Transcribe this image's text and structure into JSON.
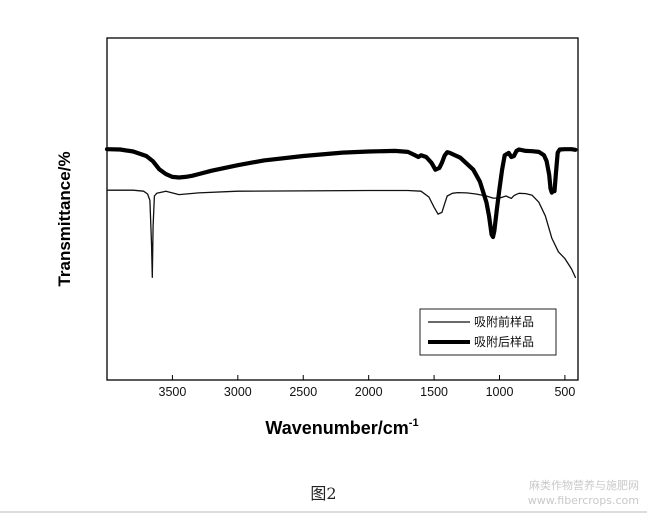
{
  "chart_data": {
    "type": "line",
    "title": "",
    "xlabel": "Wavenumber/cm",
    "xlabel_superscript": "-1",
    "ylabel": "Transmittance/%",
    "xlim": [
      4000,
      400
    ],
    "x_reversed": true,
    "y_ticks_shown": false,
    "grid": false,
    "x_ticks": [
      "3500",
      "3000",
      "2500",
      "2000",
      "1500",
      "1000",
      "500"
    ],
    "legend_position": "bottom-right",
    "series": [
      {
        "name": "吸附前样品",
        "line": "thin",
        "color": "#111111",
        "x": [
          4000,
          3800,
          3720,
          3690,
          3672,
          3660,
          3654,
          3648,
          3638,
          3620,
          3550,
          3450,
          3300,
          3000,
          2500,
          2000,
          1700,
          1600,
          1540,
          1500,
          1470,
          1440,
          1420,
          1400,
          1360,
          1320,
          1250,
          1180,
          1100,
          1050,
          1000,
          950,
          910,
          890,
          870,
          850,
          800,
          750,
          700,
          650,
          600,
          550,
          500,
          450,
          420
        ],
        "y": [
          44.5,
          44.5,
          44.8,
          45.6,
          47.5,
          60,
          70,
          55,
          46.2,
          45.4,
          44.8,
          45.8,
          45.3,
          44.8,
          44.7,
          44.6,
          44.6,
          44.8,
          46.5,
          49.5,
          51.5,
          51,
          48.5,
          46.2,
          45.4,
          45.2,
          45.3,
          45.6,
          46.2,
          46.8,
          46.8,
          46.2,
          46.9,
          46.1,
          45.7,
          45.4,
          45.5,
          46,
          48,
          52,
          58.5,
          62.5,
          64.5,
          67.5,
          70
        ]
      },
      {
        "name": "吸附后样品",
        "line": "thick",
        "color": "#000000",
        "x": [
          4000,
          3900,
          3800,
          3700,
          3650,
          3600,
          3550,
          3500,
          3450,
          3400,
          3350,
          3300,
          3200,
          3000,
          2800,
          2500,
          2200,
          2000,
          1800,
          1700,
          1650,
          1620,
          1600,
          1560,
          1520,
          1490,
          1460,
          1440,
          1420,
          1400,
          1380,
          1300,
          1200,
          1150,
          1100,
          1080,
          1060,
          1050,
          1040,
          1020,
          1000,
          980,
          960,
          930,
          910,
          890,
          870,
          850,
          800,
          750,
          700,
          660,
          640,
          620,
          610,
          600,
          590,
          580,
          570,
          555,
          540,
          500,
          450,
          420
        ],
        "y": [
          32.5,
          32.6,
          33.2,
          34.5,
          36,
          38.4,
          39.8,
          40.6,
          40.8,
          40.6,
          40.3,
          39.8,
          38.8,
          37.2,
          35.8,
          34.5,
          33.5,
          33.2,
          33,
          33.3,
          34.2,
          34.8,
          34.3,
          34.8,
          36.5,
          38.5,
          38,
          36.5,
          34.4,
          33.4,
          33.6,
          35,
          38.5,
          42,
          48,
          52,
          57.5,
          58.2,
          56.5,
          50,
          44,
          38.5,
          34.3,
          33.6,
          34.8,
          34.5,
          33,
          32.6,
          33,
          33.1,
          33.3,
          34.3,
          36,
          40,
          44,
          45.2,
          44.5,
          44.8,
          40,
          33.5,
          32.6,
          32.5,
          32.5,
          32.7
        ]
      }
    ]
  },
  "caption": "图2",
  "watermark": {
    "line1": "麻类作物营养与施肥网",
    "line2": "www.fibercrops.com"
  }
}
